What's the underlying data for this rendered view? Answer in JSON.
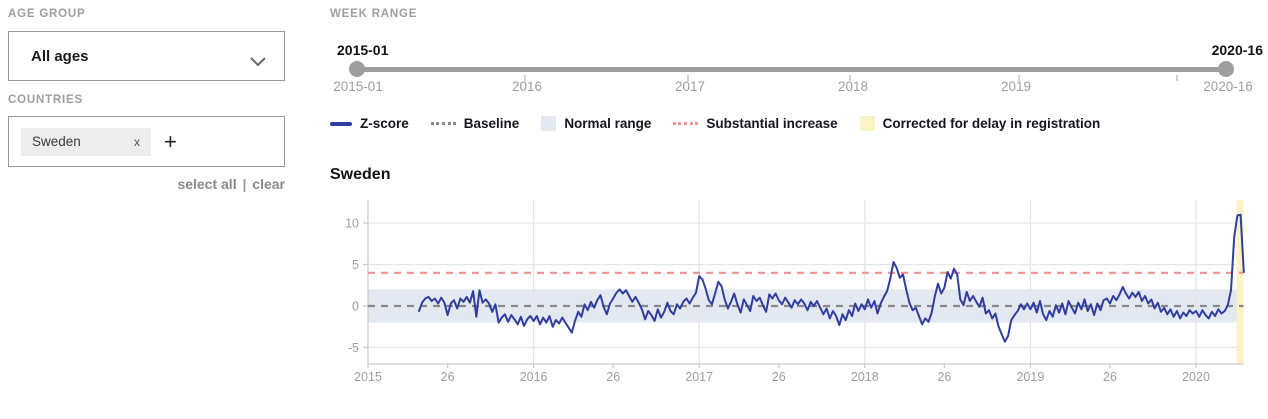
{
  "sidebar": {
    "age_group_label": "AGE GROUP",
    "age_group_value": "All ages",
    "countries_label": "COUNTRIES",
    "country_tag": "Sweden",
    "remove_tag_glyph": "x",
    "add_button_glyph": "+",
    "select_all_label": "select all",
    "links_separator": "|",
    "clear_label": "clear"
  },
  "week_range": {
    "label": "WEEK RANGE",
    "start_value": "2015-01",
    "end_value": "2020-16",
    "axis_labels": [
      "2015-01",
      "2016",
      "2017",
      "2018",
      "2019",
      "2020-16"
    ]
  },
  "legend": [
    {
      "label": "Z-score",
      "type": "line",
      "color": "#303f9f"
    },
    {
      "label": "Baseline",
      "type": "dashed",
      "color": "#8a8a8a"
    },
    {
      "label": "Normal range",
      "type": "fill",
      "color": "#e4e8f0"
    },
    {
      "label": "Substantial increase",
      "type": "dashed",
      "color": "#f19191"
    },
    {
      "label": "Corrected for delay in registration",
      "type": "fill",
      "color": "#f9f3c5"
    }
  ],
  "chart_data": {
    "type": "line",
    "title": "Sweden",
    "series_name": "Z-score",
    "x_unit": "ISO week",
    "first_data_week": "2015-17",
    "last_data_week": "2020-16",
    "start_week_offset": 16,
    "weeks_per_year": 52,
    "x_ticks": [
      {
        "label": "2015",
        "week": 0
      },
      {
        "label": "26",
        "week": 25
      },
      {
        "label": "2016",
        "week": 52
      },
      {
        "label": "26",
        "week": 77
      },
      {
        "label": "2017",
        "week": 104
      },
      {
        "label": "26",
        "week": 129
      },
      {
        "label": "2018",
        "week": 156
      },
      {
        "label": "26",
        "week": 181
      },
      {
        "label": "2019",
        "week": 208
      },
      {
        "label": "26",
        "week": 233
      },
      {
        "label": "2020",
        "week": 260
      }
    ],
    "y_ticks": [
      10,
      5,
      0,
      -5
    ],
    "ylim": [
      -7,
      12.8
    ],
    "baseline": 0,
    "substantial_increase_level": 4,
    "normal_range": [
      -2,
      2
    ],
    "corrected_weeks": 3,
    "grid": "years-vertical, y-ticks-horizontal",
    "values": [
      -0.6,
      0.4,
      0.9,
      1.1,
      0.6,
      0.9,
      0.3,
      1.0,
      0.4,
      -1.1,
      0.3,
      0.7,
      -0.3,
      0.9,
      0.5,
      1.1,
      0.4,
      1.8,
      -1.3,
      1.9,
      0.4,
      0.8,
      0.3,
      -0.7,
      0.2,
      -2.0,
      -1.4,
      -1.0,
      -1.9,
      -1.1,
      -1.6,
      -2.2,
      -1.3,
      -2.4,
      -1.6,
      -1.2,
      -1.8,
      -1.2,
      -2.2,
      -1.4,
      -2.0,
      -1.2,
      -2.5,
      -1.7,
      -2.1,
      -1.4,
      -2.0,
      -2.6,
      -3.2,
      -1.8,
      -0.7,
      -1.3,
      0.2,
      -0.5,
      0.5,
      -0.2,
      0.7,
      1.3,
      -0.1,
      -1.0,
      0.3,
      0.9,
      1.6,
      2.0,
      1.5,
      1.9,
      1.2,
      0.5,
      1.1,
      0.4,
      -0.4,
      -1.6,
      -0.6,
      -1.1,
      -1.8,
      -0.4,
      -1.4,
      -0.7,
      0.4,
      -0.6,
      -1.0,
      0.2,
      -0.3,
      0.5,
      0.9,
      0.3,
      1.0,
      1.6,
      3.6,
      3.2,
      2.1,
      0.7,
      0.2,
      1.5,
      2.9,
      2.4,
      0.8,
      -0.3,
      0.5,
      1.5,
      0.2,
      -0.8,
      0.8,
      0.1,
      -0.6,
      1.2,
      0.6,
      1.0,
      0.1,
      -0.7,
      1.4,
      0.9,
      1.5,
      0.7,
      0.2,
      1.0,
      0.4,
      -0.2,
      0.7,
      0.2,
      0.8,
      0.3,
      -0.5,
      0.5,
      0.0,
      0.6,
      -0.2,
      -1.0,
      -0.3,
      -1.5,
      -0.6,
      -1.2,
      -2.3,
      -1.0,
      -1.7,
      -0.5,
      -1.2,
      0.3,
      -0.6,
      0.2,
      -0.4,
      0.8,
      -0.2,
      0.6,
      -0.9,
      0.3,
      1.1,
      1.8,
      3.3,
      5.3,
      4.6,
      3.4,
      3.8,
      2.0,
      0.4,
      -0.5,
      -0.2,
      -1.2,
      -2.2,
      -1.5,
      -1.9,
      -0.8,
      1.2,
      2.7,
      1.5,
      2.2,
      4.1,
      3.3,
      4.5,
      3.8,
      0.8,
      0.1,
      1.7,
      0.6,
      1.2,
      0.5,
      -0.1,
      1.0,
      -0.9,
      -0.5,
      -1.5,
      -0.9,
      -2.5,
      -3.4,
      -4.3,
      -3.6,
      -1.7,
      -1.1,
      -0.6,
      0.2,
      -0.4,
      0.3,
      -0.4,
      0.4,
      -0.8,
      0.6,
      -1.0,
      -1.7,
      -0.6,
      -1.3,
      0.1,
      -0.8,
      0.3,
      -1.0,
      0.6,
      -0.2,
      -0.9,
      0.4,
      -0.4,
      0.8,
      -0.6,
      0.2,
      -1.1,
      0.3,
      -0.5,
      0.7,
      0.9,
      0.3,
      1.2,
      0.7,
      1.4,
      2.3,
      1.5,
      0.9,
      1.6,
      1.1,
      1.7,
      0.6,
      1.2,
      0.3,
      0.8,
      -0.3,
      0.4,
      -0.7,
      -0.2,
      -1.0,
      -0.4,
      -1.3,
      -0.6,
      -1.5,
      -0.8,
      -1.2,
      -0.5,
      -0.9,
      -0.6,
      -1.3,
      -0.5,
      -1.1,
      -1.5,
      -0.7,
      -1.2,
      -0.4,
      -0.9,
      -0.6,
      0.1,
      1.9,
      8.3,
      10.9,
      11.0,
      4.1
    ]
  }
}
